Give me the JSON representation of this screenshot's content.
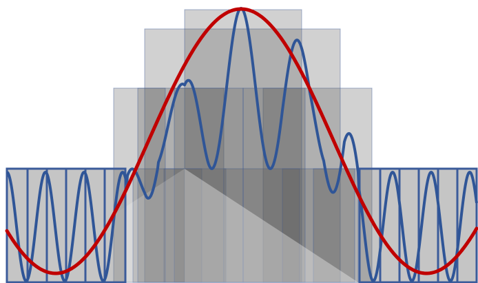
{
  "diagram": {
    "type": "overlapping-windows-waveform",
    "colors": {
      "background": "#ffffff",
      "window_fill": "#5a5a5a",
      "window_stroke": "#3b5b9a",
      "blue_wave": "#2f5597",
      "red_wave": "#c00000",
      "box_stroke": "#3b5b9a"
    },
    "legend": []
  }
}
